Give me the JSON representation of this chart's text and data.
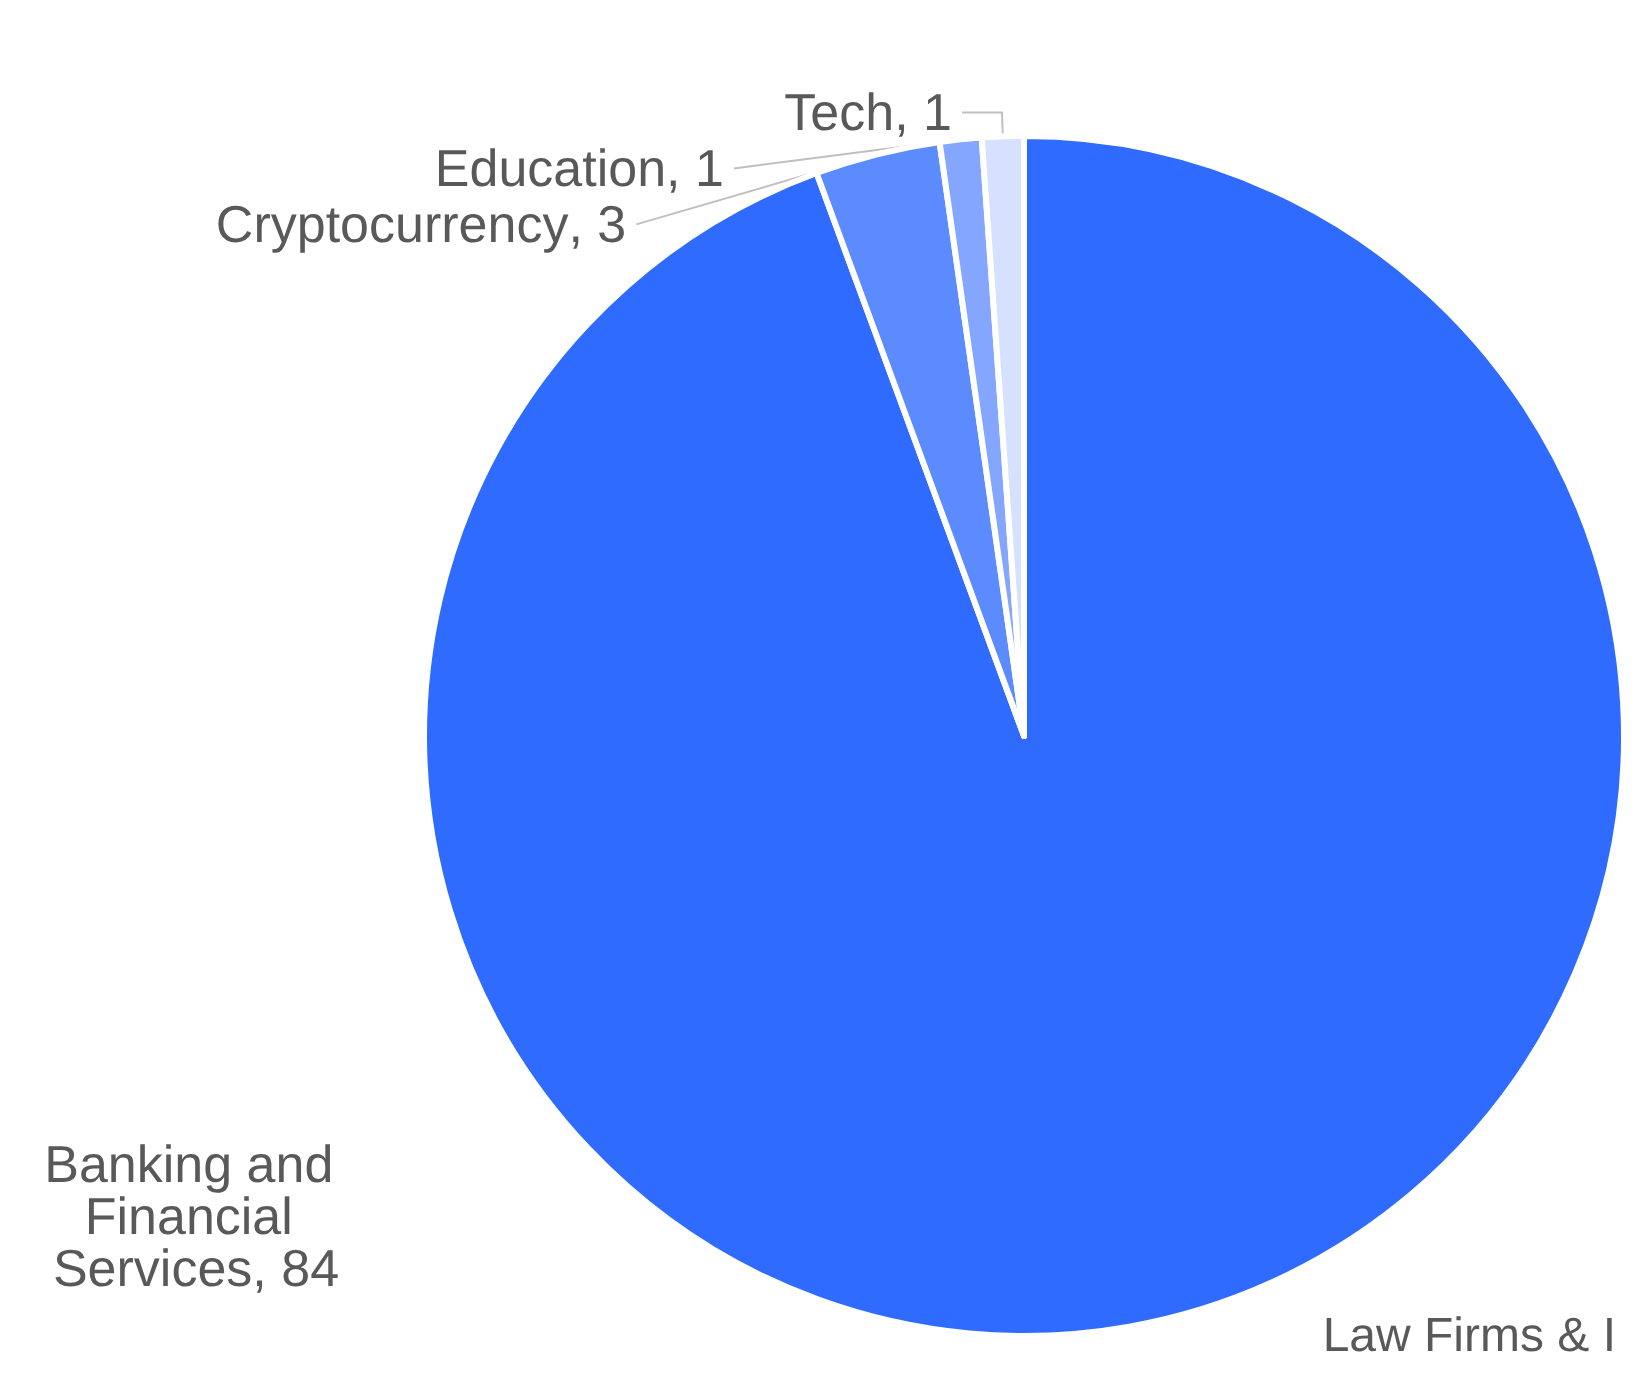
{
  "chart_data": {
    "type": "pie",
    "categories": [
      "Banking and Financial Services",
      "Cryptocurrency",
      "Education",
      "Tech"
    ],
    "values": [
      84,
      3,
      1,
      1
    ],
    "colors": [
      "#2f6bff",
      "#5b8bff",
      "#85a6ff",
      "#d5e1ff"
    ],
    "value_labels": [
      ", 84",
      ", 3",
      ", 1",
      ", 1"
    ],
    "legend": false,
    "annotations": [
      "Law Firms & I"
    ]
  }
}
